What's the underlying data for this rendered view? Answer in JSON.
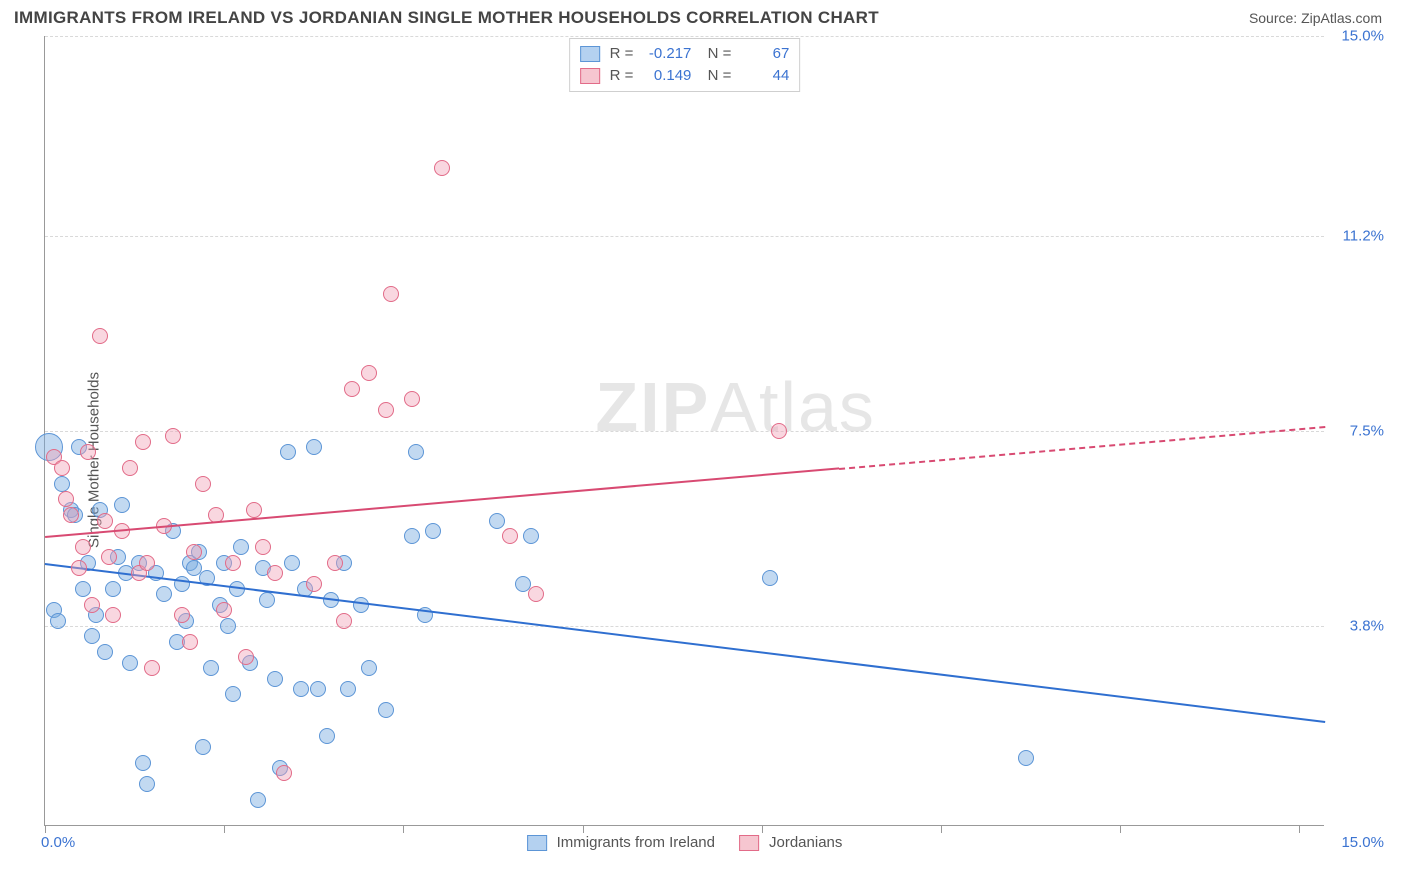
{
  "header": {
    "title": "IMMIGRANTS FROM IRELAND VS JORDANIAN SINGLE MOTHER HOUSEHOLDS CORRELATION CHART",
    "source": "Source: ZipAtlas.com"
  },
  "watermark": {
    "a": "ZIP",
    "b": "Atlas"
  },
  "chart": {
    "type": "scatter",
    "ylabel": "Single Mother Households",
    "background_color": "#ffffff",
    "grid_color": "#d9d9d9",
    "axis_color": "#999999",
    "label_color": "#3b73d1",
    "text_color": "#555555",
    "xlim": [
      0,
      15
    ],
    "ylim": [
      0,
      15
    ],
    "y_ticks": [
      {
        "v": 3.8,
        "label": "3.8%"
      },
      {
        "v": 7.5,
        "label": "7.5%"
      },
      {
        "v": 11.2,
        "label": "11.2%"
      },
      {
        "v": 15.0,
        "label": "15.0%"
      }
    ],
    "x_tick_positions": [
      0.0,
      2.1,
      4.2,
      6.3,
      8.4,
      10.5,
      12.6,
      14.7
    ],
    "x_labels": {
      "min": "0.0%",
      "max": "15.0%"
    },
    "top_legend": {
      "rows": [
        {
          "stat1_k": "R =",
          "stat1_v": "-0.217",
          "stat2_k": "N =",
          "stat2_v": "67",
          "swatch_fill": "#b4d1f0",
          "swatch_border": "#5c95d6"
        },
        {
          "stat1_k": "R =",
          "stat1_v": "0.149",
          "stat2_k": "N =",
          "stat2_v": "44",
          "swatch_fill": "#f6c6d0",
          "swatch_border": "#e26b88"
        }
      ]
    },
    "bottom_legend": [
      {
        "label": "Immigrants from Ireland",
        "swatch_fill": "#b4d1f0",
        "swatch_border": "#5c95d6"
      },
      {
        "label": "Jordanians",
        "swatch_fill": "#f6c6d0",
        "swatch_border": "#e26b88"
      }
    ],
    "series": {
      "ireland": {
        "color_fill": "rgba(120,170,225,0.45)",
        "color_border": "#5c95d6",
        "marker_r_default": 8,
        "trend": {
          "x1": 0,
          "y1": 5.0,
          "x2": 15,
          "y2": 2.0,
          "color": "#2f6fd0",
          "dash_from_x": 15
        },
        "points": [
          [
            0.05,
            7.2,
            14
          ],
          [
            0.1,
            4.1
          ],
          [
            0.15,
            3.9
          ],
          [
            0.2,
            6.5
          ],
          [
            0.3,
            6.0
          ],
          [
            0.35,
            5.9
          ],
          [
            0.4,
            7.2
          ],
          [
            0.45,
            4.5
          ],
          [
            0.5,
            5.0
          ],
          [
            0.55,
            3.6
          ],
          [
            0.6,
            4.0
          ],
          [
            0.65,
            6.0
          ],
          [
            0.7,
            3.3
          ],
          [
            0.8,
            4.5
          ],
          [
            0.85,
            5.1
          ],
          [
            0.9,
            6.1
          ],
          [
            0.95,
            4.8
          ],
          [
            1.0,
            3.1
          ],
          [
            1.1,
            5.0
          ],
          [
            1.15,
            1.2
          ],
          [
            1.2,
            0.8
          ],
          [
            1.3,
            4.8
          ],
          [
            1.4,
            4.4
          ],
          [
            1.5,
            5.6
          ],
          [
            1.55,
            3.5
          ],
          [
            1.6,
            4.6
          ],
          [
            1.65,
            3.9
          ],
          [
            1.7,
            5.0
          ],
          [
            1.75,
            4.9
          ],
          [
            1.8,
            5.2
          ],
          [
            1.85,
            1.5
          ],
          [
            1.9,
            4.7
          ],
          [
            1.95,
            3.0
          ],
          [
            2.05,
            4.2
          ],
          [
            2.1,
            5.0
          ],
          [
            2.15,
            3.8
          ],
          [
            2.2,
            2.5
          ],
          [
            2.25,
            4.5
          ],
          [
            2.3,
            5.3
          ],
          [
            2.4,
            3.1
          ],
          [
            2.5,
            0.5
          ],
          [
            2.55,
            4.9
          ],
          [
            2.6,
            4.3
          ],
          [
            2.7,
            2.8
          ],
          [
            2.75,
            1.1
          ],
          [
            2.85,
            7.1
          ],
          [
            2.9,
            5.0
          ],
          [
            3.0,
            2.6
          ],
          [
            3.05,
            4.5
          ],
          [
            3.15,
            7.2
          ],
          [
            3.2,
            2.6
          ],
          [
            3.3,
            1.7
          ],
          [
            3.35,
            4.3
          ],
          [
            3.5,
            5.0
          ],
          [
            3.55,
            2.6
          ],
          [
            3.7,
            4.2
          ],
          [
            3.8,
            3.0
          ],
          [
            4.0,
            2.2
          ],
          [
            4.3,
            5.5
          ],
          [
            4.35,
            7.1
          ],
          [
            4.45,
            4.0
          ],
          [
            4.55,
            5.6
          ],
          [
            5.3,
            5.8
          ],
          [
            5.6,
            4.6
          ],
          [
            5.7,
            5.5
          ],
          [
            8.5,
            4.7
          ],
          [
            11.5,
            1.3
          ]
        ]
      },
      "jordan": {
        "color_fill": "rgba(240,160,180,0.42)",
        "color_border": "#e26b88",
        "marker_r_default": 8,
        "trend": {
          "x1": 0,
          "y1": 5.5,
          "x2": 15,
          "y2": 7.6,
          "color": "#d84a72",
          "dash_from_x": 9.3
        },
        "points": [
          [
            0.1,
            7.0
          ],
          [
            0.2,
            6.8
          ],
          [
            0.25,
            6.2
          ],
          [
            0.3,
            5.9
          ],
          [
            0.4,
            4.9
          ],
          [
            0.45,
            5.3
          ],
          [
            0.5,
            7.1
          ],
          [
            0.55,
            4.2
          ],
          [
            0.65,
            9.3
          ],
          [
            0.7,
            5.8
          ],
          [
            0.75,
            5.1
          ],
          [
            0.8,
            4.0
          ],
          [
            0.9,
            5.6
          ],
          [
            1.0,
            6.8
          ],
          [
            1.1,
            4.8
          ],
          [
            1.15,
            7.3
          ],
          [
            1.2,
            5.0
          ],
          [
            1.25,
            3.0
          ],
          [
            1.4,
            5.7
          ],
          [
            1.5,
            7.4
          ],
          [
            1.6,
            4.0
          ],
          [
            1.7,
            3.5
          ],
          [
            1.75,
            5.2
          ],
          [
            1.85,
            6.5
          ],
          [
            2.0,
            5.9
          ],
          [
            2.1,
            4.1
          ],
          [
            2.2,
            5.0
          ],
          [
            2.35,
            3.2
          ],
          [
            2.45,
            6.0
          ],
          [
            2.55,
            5.3
          ],
          [
            2.7,
            4.8
          ],
          [
            2.8,
            1.0
          ],
          [
            3.15,
            4.6
          ],
          [
            3.4,
            5.0
          ],
          [
            3.5,
            3.9
          ],
          [
            3.6,
            8.3
          ],
          [
            3.8,
            8.6
          ],
          [
            4.0,
            7.9
          ],
          [
            4.05,
            10.1
          ],
          [
            4.3,
            8.1
          ],
          [
            4.65,
            12.5
          ],
          [
            5.45,
            5.5
          ],
          [
            5.75,
            4.4
          ],
          [
            8.6,
            7.5
          ]
        ]
      }
    }
  }
}
